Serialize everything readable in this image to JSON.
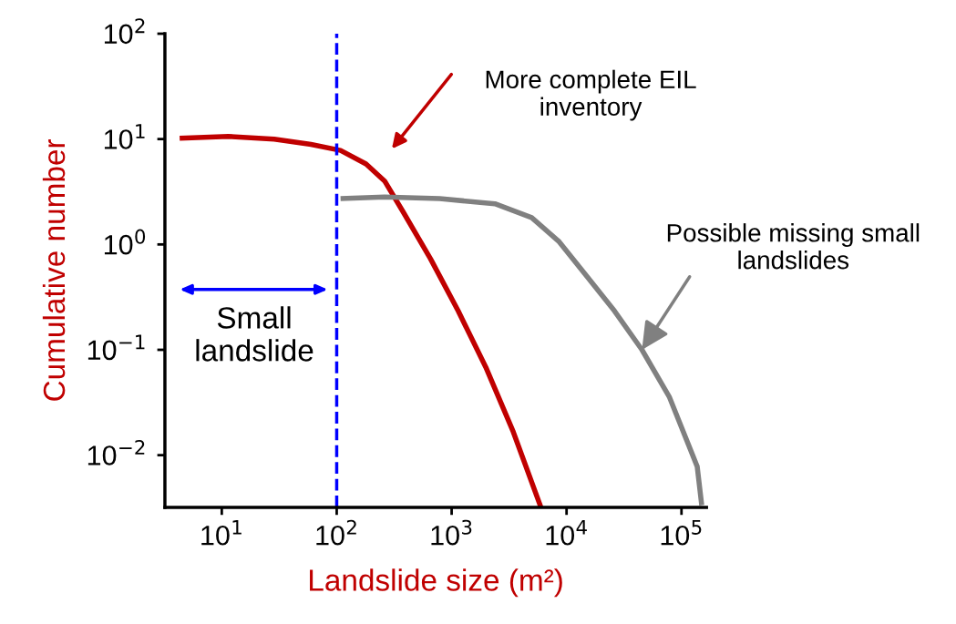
{
  "chart_data": {
    "type": "line",
    "xlabel": "Landslide size (m²)",
    "ylabel": "Cumulative number",
    "log": "xy",
    "xlim": [
      3.2,
      165000
    ],
    "ylim": [
      0.0032,
      100
    ],
    "xticks": [
      {
        "value": 10,
        "label": "10$^{1}$"
      },
      {
        "value": 100,
        "label": "10$^{2}$"
      },
      {
        "value": 1000,
        "label": "10$^{3}$"
      },
      {
        "value": 10000,
        "label": "10$^{4}$"
      },
      {
        "value": 100000,
        "label": "10$^{5}$"
      }
    ],
    "yticks": [
      {
        "value": 0.01,
        "label": "10$^{−2}$"
      },
      {
        "value": 0.1,
        "label": "10$^{−1}$"
      },
      {
        "value": 1,
        "label": "10$^{0}$"
      },
      {
        "value": 10,
        "label": "10$^{1}$"
      },
      {
        "value": 100,
        "label": "10$^{2}$"
      }
    ],
    "grid": false,
    "marker": "none",
    "line_style": "solid",
    "series": [
      {
        "color": "#c00000",
        "x": [
          4.3,
          11.4,
          28.6,
          59.7,
          108,
          180,
          261,
          377,
          655,
          1140,
          1980,
          3440,
          5970
        ],
        "values": [
          10.2,
          10.6,
          10,
          8.9,
          7.8,
          5.8,
          4.0,
          2.05,
          0.73,
          0.234,
          0.0686,
          0.0166,
          0.00322
        ]
      },
      {
        "color": "#808080",
        "x": [
          108,
          261,
          787,
          2380,
          4970,
          8630,
          15000,
          26100,
          45300,
          78700,
          137000,
          150000
        ],
        "values": [
          2.72,
          2.82,
          2.72,
          2.43,
          1.8,
          1.06,
          0.498,
          0.234,
          0.1,
          0.0354,
          0.0078,
          0.00335
        ]
      }
    ],
    "ref_lines": [
      {
        "axis": "x",
        "value": 100,
        "color": "#0000ff",
        "line_style": "dashed"
      }
    ],
    "annotations": [
      "More complete EIL\ninventory",
      {
        "text": "Possible missing small\nlandslides",
        "x": 45300,
        "y": 0.1
      },
      "Small\nlandslide"
    ]
  }
}
